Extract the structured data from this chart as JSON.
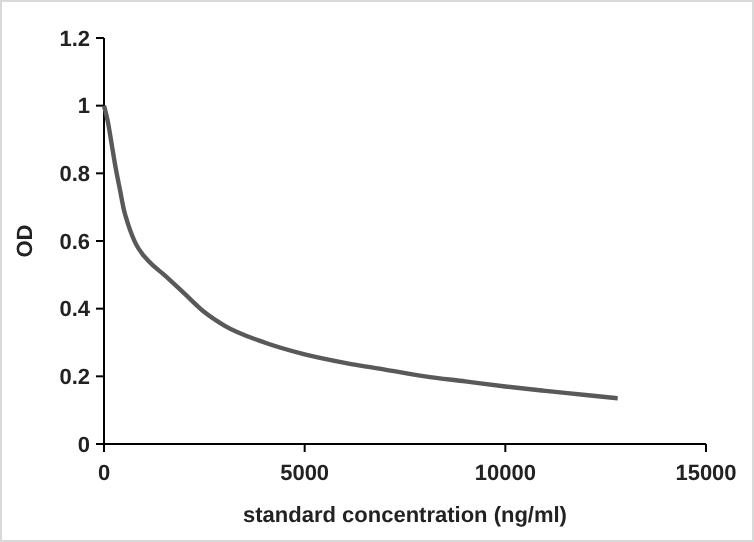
{
  "chart_data": {
    "type": "line",
    "xlabel": "standard concentration (ng/ml)",
    "ylabel": "OD",
    "series": [
      {
        "color": "#595959",
        "x": [
          0,
          100,
          200,
          300,
          400,
          500,
          600,
          800,
          1000,
          1250,
          1500,
          2000,
          2500,
          3000,
          4000,
          5000,
          6000,
          7000,
          8000,
          9000,
          10000,
          11000,
          12000,
          12800
        ],
        "values": [
          1.0,
          0.95,
          0.88,
          0.81,
          0.75,
          0.69,
          0.65,
          0.59,
          0.555,
          0.525,
          0.5,
          0.445,
          0.39,
          0.35,
          0.3,
          0.265,
          0.24,
          0.22,
          0.2,
          0.185,
          0.17,
          0.157,
          0.145,
          0.135
        ]
      }
    ],
    "xlim": [
      0,
      15000
    ],
    "xticks": [
      0,
      5000,
      10000,
      15000
    ],
    "ylim": [
      0,
      1.2
    ],
    "yticks": [
      0,
      0.2,
      0.4,
      0.6,
      0.8,
      1,
      1.2
    ],
    "grid": false,
    "marker": "none",
    "line_style": "solid"
  }
}
